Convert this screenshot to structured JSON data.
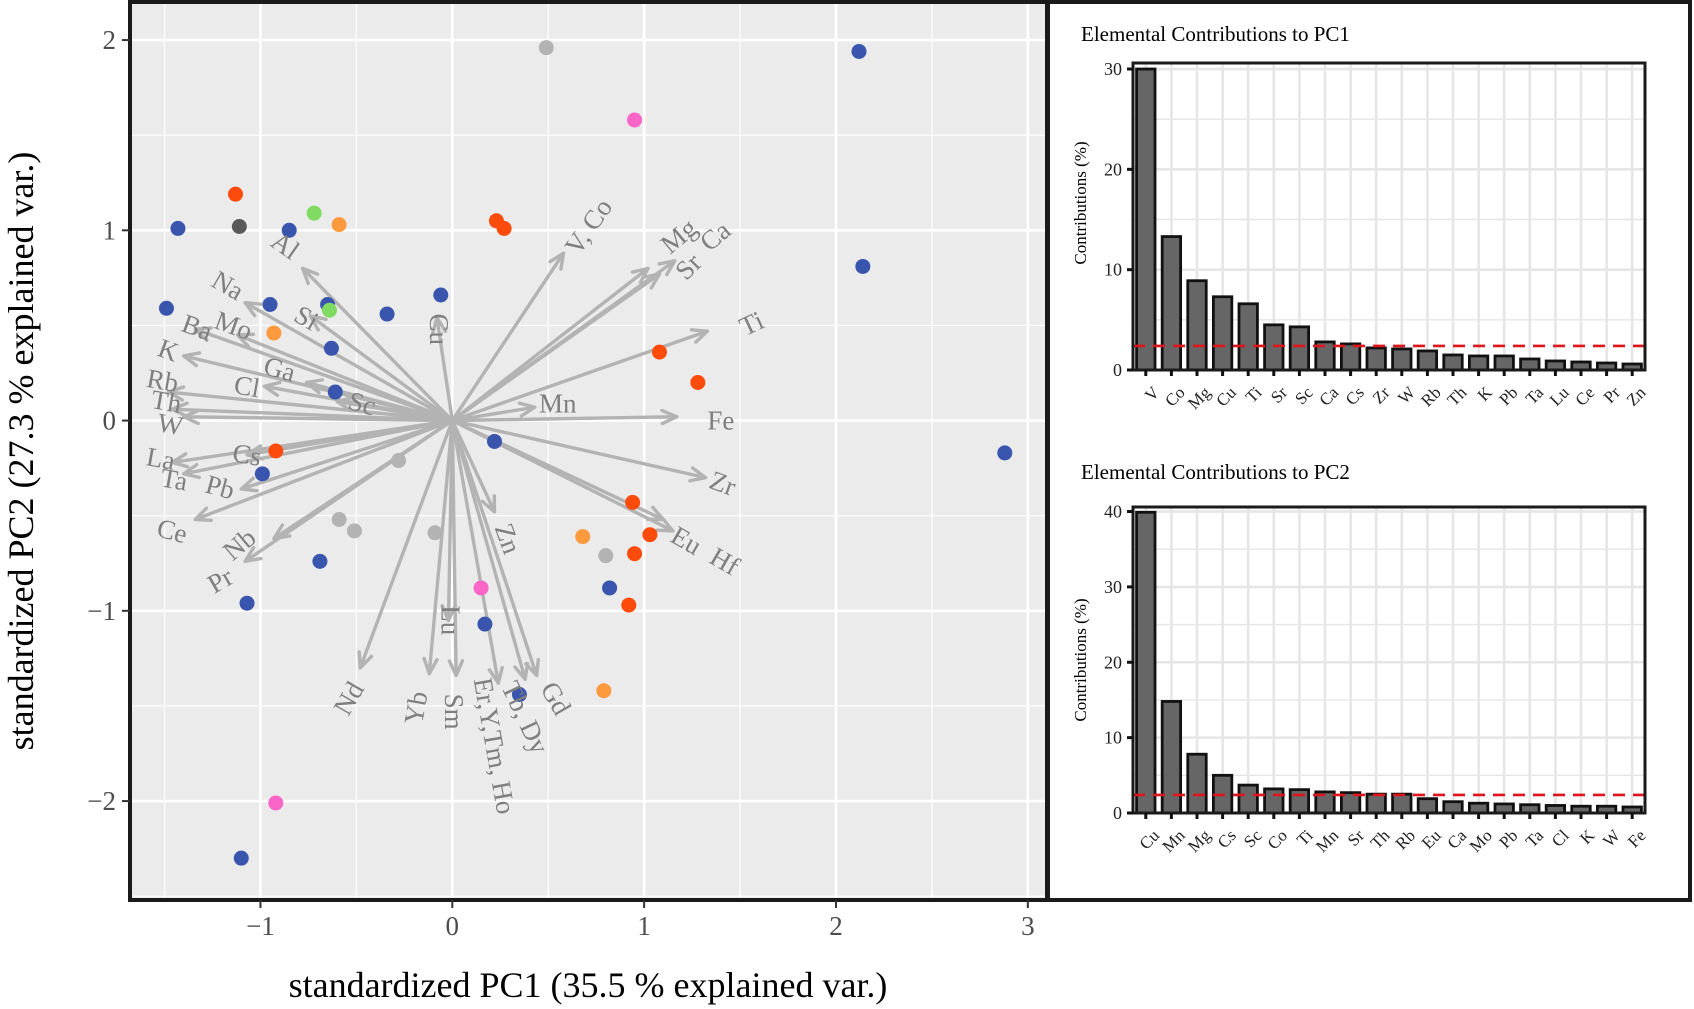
{
  "chart_data": [
    {
      "type": "biplot",
      "xlabel": "standardized PC1 (35.5 % explained var.)",
      "ylabel": "standardized PC2 (27.3 % explained var.)",
      "xlim": [
        -1.68,
        3.1
      ],
      "ylim": [
        -2.52,
        2.2
      ],
      "xticks": [
        -1,
        0,
        1,
        2,
        3
      ],
      "yticks": [
        -2,
        -1,
        0,
        1,
        2
      ],
      "xtick_labels": [
        "−1",
        "0",
        "1",
        "2",
        "3"
      ],
      "ytick_labels": [
        "−2",
        "−1",
        "0",
        "1",
        "2"
      ],
      "grid": true,
      "colors": {
        "arrow": "#b3b3b3",
        "panel": "#ebebeb",
        "grid": "#ffffff",
        "label": "#7f7f7f"
      },
      "loadings": [
        {
          "label": "Al",
          "x": -0.78,
          "y": 0.8,
          "lx": -0.87,
          "ly": 0.92,
          "angle": 35
        },
        {
          "label": "Na",
          "x": -1.08,
          "y": 0.62,
          "lx": -1.17,
          "ly": 0.71,
          "angle": 30
        },
        {
          "label": "Si",
          "x": -0.74,
          "y": 0.55,
          "lx": -0.76,
          "ly": 0.54,
          "angle": 30
        },
        {
          "label": "Mo",
          "x": -1.12,
          "y": 0.45,
          "lx": -1.14,
          "ly": 0.5,
          "angle": 20
        },
        {
          "label": "Ba",
          "x": -1.34,
          "y": 0.48,
          "lx": -1.33,
          "ly": 0.49,
          "angle": 20
        },
        {
          "label": "K",
          "x": -1.4,
          "y": 0.34,
          "lx": -1.48,
          "ly": 0.37,
          "angle": 20
        },
        {
          "label": "Ga",
          "x": -0.76,
          "y": 0.2,
          "lx": -0.9,
          "ly": 0.27,
          "angle": 15
        },
        {
          "label": "Cl",
          "x": -0.98,
          "y": 0.18,
          "lx": -1.07,
          "ly": 0.18,
          "angle": 10
        },
        {
          "label": "Sc",
          "x": -0.6,
          "y": 0.1,
          "lx": -0.47,
          "ly": 0.09,
          "angle": 15
        },
        {
          "label": "Rb",
          "x": -1.48,
          "y": 0.15,
          "lx": -1.51,
          "ly": 0.21,
          "angle": 10
        },
        {
          "label": "Th",
          "x": -1.46,
          "y": 0.06,
          "lx": -1.49,
          "ly": 0.1,
          "angle": 10
        },
        {
          "label": "W",
          "x": -1.4,
          "y": 0.02,
          "lx": -1.47,
          "ly": -0.02,
          "angle": 10
        },
        {
          "label": "La",
          "x": -1.46,
          "y": -0.22,
          "lx": -1.52,
          "ly": -0.2,
          "angle": 10
        },
        {
          "label": "Ta",
          "x": -1.4,
          "y": -0.28,
          "lx": -1.45,
          "ly": -0.31,
          "angle": 10
        },
        {
          "label": "Cs",
          "x": -1.07,
          "y": -0.18,
          "lx": -1.07,
          "ly": -0.18,
          "angle": 10
        },
        {
          "label": "Pb",
          "x": -1.1,
          "y": -0.36,
          "lx": -1.21,
          "ly": -0.35,
          "angle": 15
        },
        {
          "label": "Ce",
          "x": -1.34,
          "y": -0.52,
          "lx": -1.46,
          "ly": -0.58,
          "angle": 15
        },
        {
          "label": "Nb",
          "x": -0.93,
          "y": -0.62,
          "lx": -1.11,
          "ly": -0.65,
          "angle": -40
        },
        {
          "label": "Pr",
          "x": -1.08,
          "y": -0.74,
          "lx": -1.21,
          "ly": -0.84,
          "angle": -30
        },
        {
          "label": "Nd",
          "x": -0.48,
          "y": -1.3,
          "lx": -0.54,
          "ly": -1.46,
          "angle": -60
        },
        {
          "label": "Yb",
          "x": -0.12,
          "y": -1.33,
          "lx": -0.19,
          "ly": -1.51,
          "angle": -80
        },
        {
          "label": "Lu",
          "x": -0.02,
          "y": -1.05,
          "lx": -0.01,
          "ly": -1.05,
          "angle": 90
        },
        {
          "label": "Sm",
          "x": 0.02,
          "y": -1.34,
          "lx": 0.01,
          "ly": -1.53,
          "angle": 90
        },
        {
          "label": "Er,Y,Tm, Ho",
          "x": 0.24,
          "y": -1.38,
          "lx": 0.22,
          "ly": -1.71,
          "angle": 80
        },
        {
          "label": "Tb, Dy",
          "x": 0.38,
          "y": -1.36,
          "lx": 0.38,
          "ly": -1.56,
          "angle": 65
        },
        {
          "label": "Gd",
          "x": 0.44,
          "y": -1.34,
          "lx": 0.54,
          "ly": -1.46,
          "angle": 60
        },
        {
          "label": "Zn",
          "x": 0.22,
          "y": -0.48,
          "lx": 0.29,
          "ly": -0.62,
          "angle": 70
        },
        {
          "label": "Cu",
          "x": -0.08,
          "y": 0.54,
          "lx": -0.07,
          "ly": 0.48,
          "angle": 90
        },
        {
          "label": "V, Co",
          "x": 0.58,
          "y": 0.88,
          "lx": 0.71,
          "ly": 1.02,
          "angle": -55
        },
        {
          "label": "Mg",
          "x": 1.02,
          "y": 0.8,
          "lx": 1.18,
          "ly": 0.97,
          "angle": -40
        },
        {
          "label": "Sr",
          "x": 1.08,
          "y": 0.77,
          "lx": 1.23,
          "ly": 0.81,
          "angle": -45
        },
        {
          "label": "Ca",
          "x": 1.16,
          "y": 0.84,
          "lx": 1.37,
          "ly": 0.97,
          "angle": -40
        },
        {
          "label": "Ti",
          "x": 1.33,
          "y": 0.47,
          "lx": 1.56,
          "ly": 0.51,
          "angle": -25
        },
        {
          "label": "Mn",
          "x": 0.43,
          "y": 0.07,
          "lx": 0.55,
          "ly": 0.09,
          "angle": 0
        },
        {
          "label": "Fe",
          "x": 1.17,
          "y": 0.02,
          "lx": 1.4,
          "ly": 0.0,
          "angle": 0
        },
        {
          "label": "Zr",
          "x": 1.32,
          "y": -0.3,
          "lx": 1.41,
          "ly": -0.33,
          "angle": 20
        },
        {
          "label": "Eu",
          "x": 1.15,
          "y": -0.58,
          "lx": 1.22,
          "ly": -0.63,
          "angle": 30
        },
        {
          "label": "Hf",
          "x": 1.1,
          "y": -0.52,
          "lx": 1.42,
          "ly": -0.74,
          "angle": 30
        }
      ],
      "scores": [
        {
          "x": -1.43,
          "y": 1.01,
          "color": "#3955ae"
        },
        {
          "x": -1.13,
          "y": 1.19,
          "color": "#fd4b0b"
        },
        {
          "x": -1.11,
          "y": 1.02,
          "color": "#595959"
        },
        {
          "x": -0.85,
          "y": 1.0,
          "color": "#3955ae"
        },
        {
          "x": -0.72,
          "y": 1.09,
          "color": "#7fdb62"
        },
        {
          "x": -0.59,
          "y": 1.03,
          "color": "#fd9a3e"
        },
        {
          "x": 0.49,
          "y": 1.96,
          "color": "#b3b3b3"
        },
        {
          "x": 0.95,
          "y": 1.58,
          "color": "#f966c8"
        },
        {
          "x": 0.23,
          "y": 1.05,
          "color": "#fd4b0b"
        },
        {
          "x": 0.27,
          "y": 1.01,
          "color": "#fd4b0b"
        },
        {
          "x": 2.12,
          "y": 1.94,
          "color": "#3955ae"
        },
        {
          "x": 2.14,
          "y": 0.81,
          "color": "#3955ae"
        },
        {
          "x": -1.49,
          "y": 0.59,
          "color": "#3955ae"
        },
        {
          "x": -0.95,
          "y": 0.61,
          "color": "#3955ae"
        },
        {
          "x": -0.65,
          "y": 0.61,
          "color": "#3955ae"
        },
        {
          "x": -0.64,
          "y": 0.58,
          "color": "#7fdb62"
        },
        {
          "x": -0.34,
          "y": 0.56,
          "color": "#3955ae"
        },
        {
          "x": -0.06,
          "y": 0.66,
          "color": "#3955ae"
        },
        {
          "x": -0.93,
          "y": 0.46,
          "color": "#fd9a3e"
        },
        {
          "x": -0.63,
          "y": 0.38,
          "color": "#3955ae"
        },
        {
          "x": -0.61,
          "y": 0.15,
          "color": "#3955ae"
        },
        {
          "x": 1.08,
          "y": 0.36,
          "color": "#fd4b0b"
        },
        {
          "x": 1.28,
          "y": 0.2,
          "color": "#fd4b0b"
        },
        {
          "x": 0.22,
          "y": -0.11,
          "color": "#3955ae"
        },
        {
          "x": 2.88,
          "y": -0.17,
          "color": "#3955ae"
        },
        {
          "x": -0.92,
          "y": -0.16,
          "color": "#fd4b0b"
        },
        {
          "x": -0.99,
          "y": -0.28,
          "color": "#3955ae"
        },
        {
          "x": -0.28,
          "y": -0.21,
          "color": "#b3b3b3"
        },
        {
          "x": -0.59,
          "y": -0.52,
          "color": "#b3b3b3"
        },
        {
          "x": -0.51,
          "y": -0.58,
          "color": "#b3b3b3"
        },
        {
          "x": -0.09,
          "y": -0.59,
          "color": "#b3b3b3"
        },
        {
          "x": 0.94,
          "y": -0.43,
          "color": "#fd4b0b"
        },
        {
          "x": 1.03,
          "y": -0.6,
          "color": "#fd4b0b"
        },
        {
          "x": 0.68,
          "y": -0.61,
          "color": "#fd9a3e"
        },
        {
          "x": 0.8,
          "y": -0.71,
          "color": "#b3b3b3"
        },
        {
          "x": 0.95,
          "y": -0.7,
          "color": "#fd4b0b"
        },
        {
          "x": -0.69,
          "y": -0.74,
          "color": "#3955ae"
        },
        {
          "x": 0.15,
          "y": -0.88,
          "color": "#f966c8"
        },
        {
          "x": 0.82,
          "y": -0.88,
          "color": "#3955ae"
        },
        {
          "x": 0.92,
          "y": -0.97,
          "color": "#fd4b0b"
        },
        {
          "x": -1.07,
          "y": -0.96,
          "color": "#3955ae"
        },
        {
          "x": 0.17,
          "y": -1.07,
          "color": "#3955ae"
        },
        {
          "x": 0.79,
          "y": -1.42,
          "color": "#fd9a3e"
        },
        {
          "x": 0.35,
          "y": -1.44,
          "color": "#3955ae"
        },
        {
          "x": -0.92,
          "y": -2.01,
          "color": "#f966c8"
        },
        {
          "x": -1.1,
          "y": -2.3,
          "color": "#3955ae"
        }
      ]
    },
    {
      "type": "bar",
      "title": "Elemental Contributions to PC1",
      "ylabel": "Contributions (%)",
      "categories": [
        "V",
        "Co",
        "Mg",
        "Cu",
        "Ti",
        "Sr",
        "Sc",
        "Ca",
        "Cs",
        "Zr",
        "W",
        "Rb",
        "Th",
        "K",
        "Pb",
        "Ta",
        "Lu",
        "Ce",
        "Pr",
        "Zn"
      ],
      "values": [
        30.0,
        13.3,
        8.9,
        7.3,
        6.6,
        4.5,
        4.3,
        2.8,
        2.6,
        2.2,
        2.1,
        1.9,
        1.5,
        1.4,
        1.4,
        1.1,
        0.9,
        0.8,
        0.7,
        0.6
      ],
      "ylim": [
        0,
        30.6
      ],
      "yticks": [
        0,
        10,
        20,
        30
      ],
      "reference_line": 2.4,
      "bar_color": "#666666",
      "line_color": "#e0151b"
    },
    {
      "type": "bar",
      "title": "Elemental Contributions to PC2",
      "ylabel": "Contributions (%)",
      "categories": [
        "Cu",
        "Mn",
        "Mg",
        "Cs",
        "Sc",
        "Co",
        "Ti",
        "Mn",
        "Sr",
        "Th",
        "Rb",
        "Eu",
        "Ca",
        "Mo",
        "Pb",
        "Ta",
        "Cl",
        "K",
        "W",
        "Fe"
      ],
      "values": [
        39.9,
        14.8,
        7.8,
        5.0,
        3.7,
        3.2,
        3.1,
        2.8,
        2.7,
        2.5,
        2.5,
        1.9,
        1.5,
        1.3,
        1.2,
        1.1,
        1.0,
        0.9,
        0.9,
        0.8
      ],
      "ylim": [
        0,
        40.6
      ],
      "yticks": [
        0,
        10,
        20,
        30,
        40
      ],
      "reference_line": 2.4,
      "bar_color": "#666666",
      "line_color": "#e0151b"
    }
  ]
}
